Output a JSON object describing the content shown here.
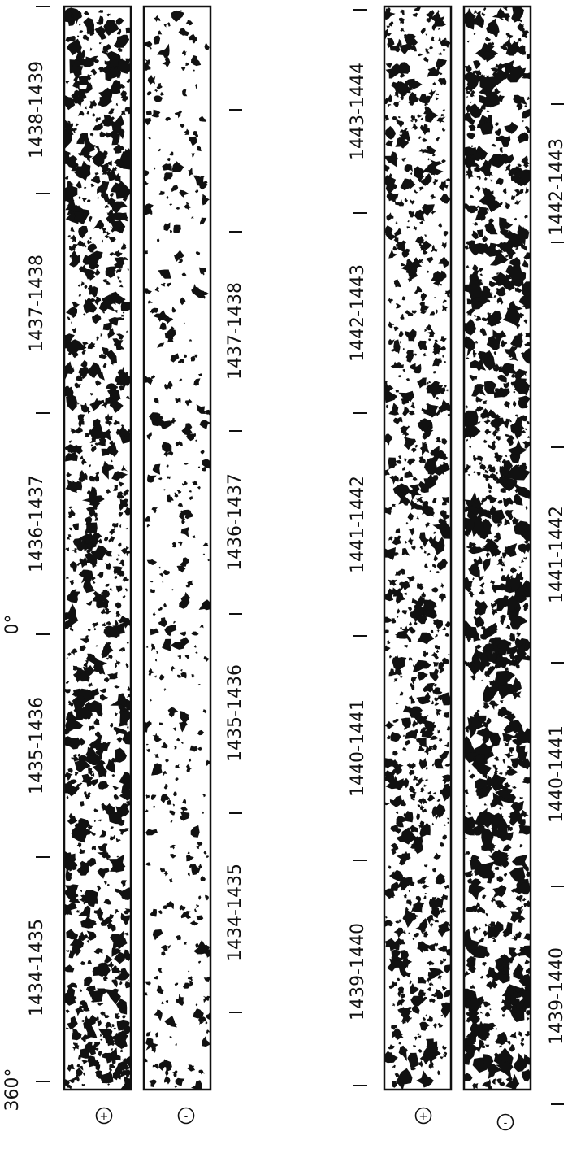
{
  "figure": {
    "deg_start": "360°",
    "deg_zero": "0°",
    "polarity_plus": "+",
    "polarity_minus": "-",
    "panel_a": {
      "plus_labels": [
        "1434-1435",
        "1435-1436",
        "1436-1437",
        "1437-1438",
        "1438-1439"
      ],
      "minus_labels": [
        "1434-1435",
        "1435-1436",
        "1436-1437",
        "1437-1438"
      ]
    },
    "panel_b": {
      "plus_labels": [
        "1439-1440",
        "1440-1441",
        "1441-1442",
        "1442-1443",
        "1443-1444"
      ],
      "minus_labels": [
        "1439-1440",
        "1440-1441",
        "1441-1442",
        "1442-1443"
      ]
    }
  },
  "colors": {
    "ink": "#111111",
    "paper": "#ffffff"
  }
}
